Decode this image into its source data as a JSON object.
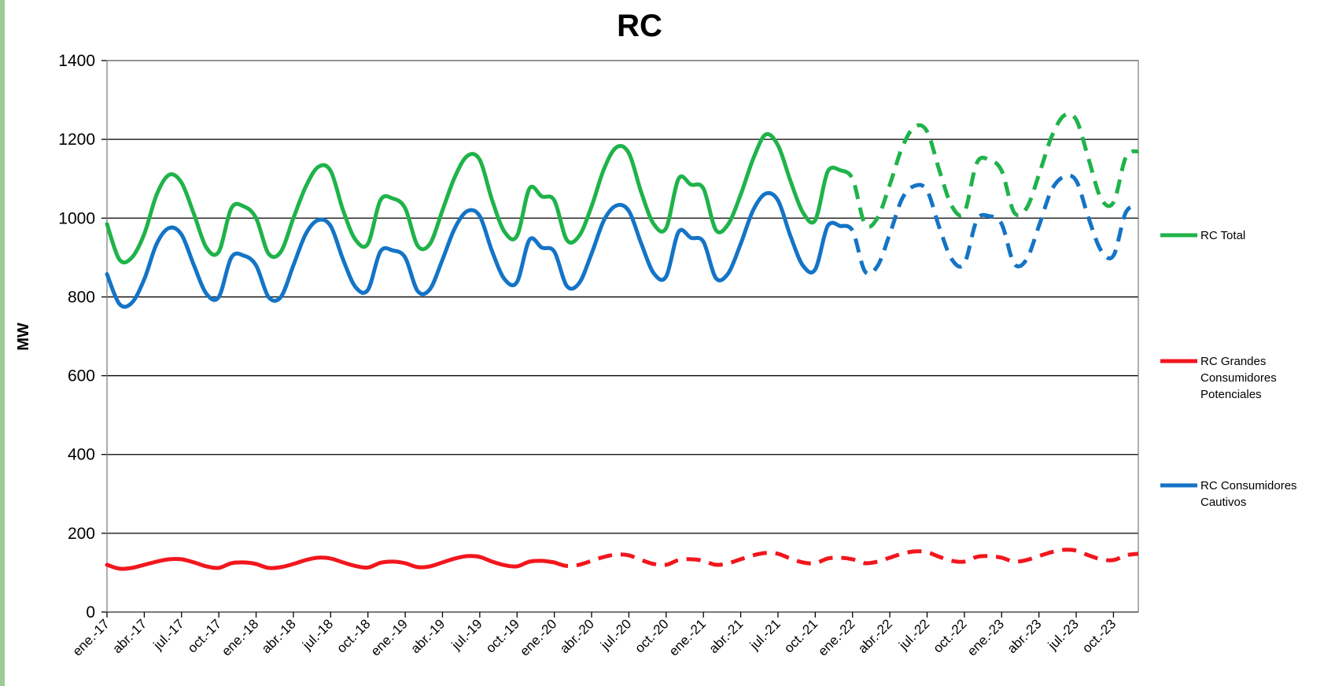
{
  "colors": {
    "frame_bar": "#9cc994",
    "total": "#1fb34a",
    "grandes": "#f2161d",
    "cautivos": "#1474c6",
    "grid": "#000000"
  },
  "chart_data": {
    "type": "line",
    "title": "RC",
    "xlabel": "",
    "ylabel": "MW",
    "ylim": [
      0,
      1400
    ],
    "yticks": [
      "0",
      "200",
      "400",
      "600",
      "800",
      "1000",
      "1200",
      "1400"
    ],
    "grid": "horizontal",
    "legend_position": "right",
    "x_tick_labels": [
      "ene.-17",
      "abr.-17",
      "jul.-17",
      "oct.-17",
      "ene.-18",
      "abr.-18",
      "jul.-18",
      "oct.-18",
      "ene.-19",
      "abr.-19",
      "jul.-19",
      "oct.-19",
      "ene.-20",
      "abr.-20",
      "jul.-20",
      "oct.-20",
      "ene.-21",
      "abr.-21",
      "jul.-21",
      "oct.-21",
      "ene.-22",
      "abr.-22",
      "jul.-22",
      "oct.-22",
      "ene.-23",
      "abr.-23",
      "jul.-23",
      "oct.-23"
    ],
    "n_months": 84,
    "series": [
      {
        "name": "RC Total",
        "color": "#1fb34a",
        "solid_until_index": 59,
        "values": [
          985,
          895,
          900,
          960,
          1060,
          1110,
          1090,
          1010,
          925,
          915,
          1025,
          1030,
          1000,
          910,
          915,
          1000,
          1080,
          1130,
          1120,
          1020,
          945,
          935,
          1045,
          1050,
          1025,
          930,
          935,
          1020,
          1105,
          1158,
          1148,
          1045,
          965,
          955,
          1075,
          1055,
          1045,
          945,
          955,
          1030,
          1125,
          1180,
          1165,
          1065,
          985,
          975,
          1100,
          1085,
          1075,
          970,
          985,
          1060,
          1150,
          1212,
          1185,
          1095,
          1015,
          995,
          1118,
          1122,
          1100,
          985,
          1000,
          1085,
          1180,
          1232,
          1220,
          1120,
          1030,
          1015,
          1140,
          1148,
          1120,
          1015,
          1025,
          1110,
          1205,
          1260,
          1250,
          1150,
          1050,
          1040,
          1155,
          1170
        ]
      },
      {
        "name": "RC Grandes Consumidores Potenciales",
        "color": "#f2161d",
        "solid_until_index": 36,
        "values": [
          120,
          110,
          112,
          120,
          128,
          134,
          134,
          126,
          116,
          112,
          124,
          126,
          122,
          112,
          114,
          122,
          132,
          138,
          136,
          126,
          117,
          113,
          125,
          128,
          124,
          114,
          116,
          126,
          136,
          142,
          140,
          128,
          119,
          116,
          128,
          130,
          126,
          117,
          120,
          130,
          140,
          146,
          144,
          132,
          122,
          120,
          132,
          134,
          130,
          120,
          124,
          134,
          144,
          150,
          148,
          136,
          126,
          124,
          136,
          138,
          134,
          124,
          128,
          138,
          148,
          154,
          152,
          140,
          130,
          128,
          140,
          142,
          138,
          128,
          132,
          142,
          152,
          158,
          156,
          144,
          134,
          132,
          144,
          148
        ]
      },
      {
        "name": "RC Consumidores Cautivos",
        "color": "#1474c6",
        "solid_until_index": 59,
        "values": [
          858,
          782,
          785,
          845,
          935,
          975,
          958,
          880,
          808,
          800,
          900,
          905,
          880,
          800,
          800,
          880,
          960,
          995,
          980,
          895,
          825,
          818,
          915,
          918,
          900,
          815,
          820,
          895,
          975,
          1018,
          1005,
          915,
          845,
          838,
          945,
          925,
          915,
          828,
          835,
          910,
          995,
          1032,
          1018,
          935,
          860,
          852,
          965,
          950,
          940,
          848,
          860,
          935,
          1020,
          1062,
          1045,
          955,
          880,
          870,
          980,
          980,
          968,
          865,
          878,
          960,
          1050,
          1082,
          1070,
          975,
          895,
          885,
          995,
          1005,
          985,
          885,
          895,
          980,
          1070,
          1105,
          1095,
          1000,
          918,
          905,
          1015,
          1030
        ]
      }
    ]
  }
}
